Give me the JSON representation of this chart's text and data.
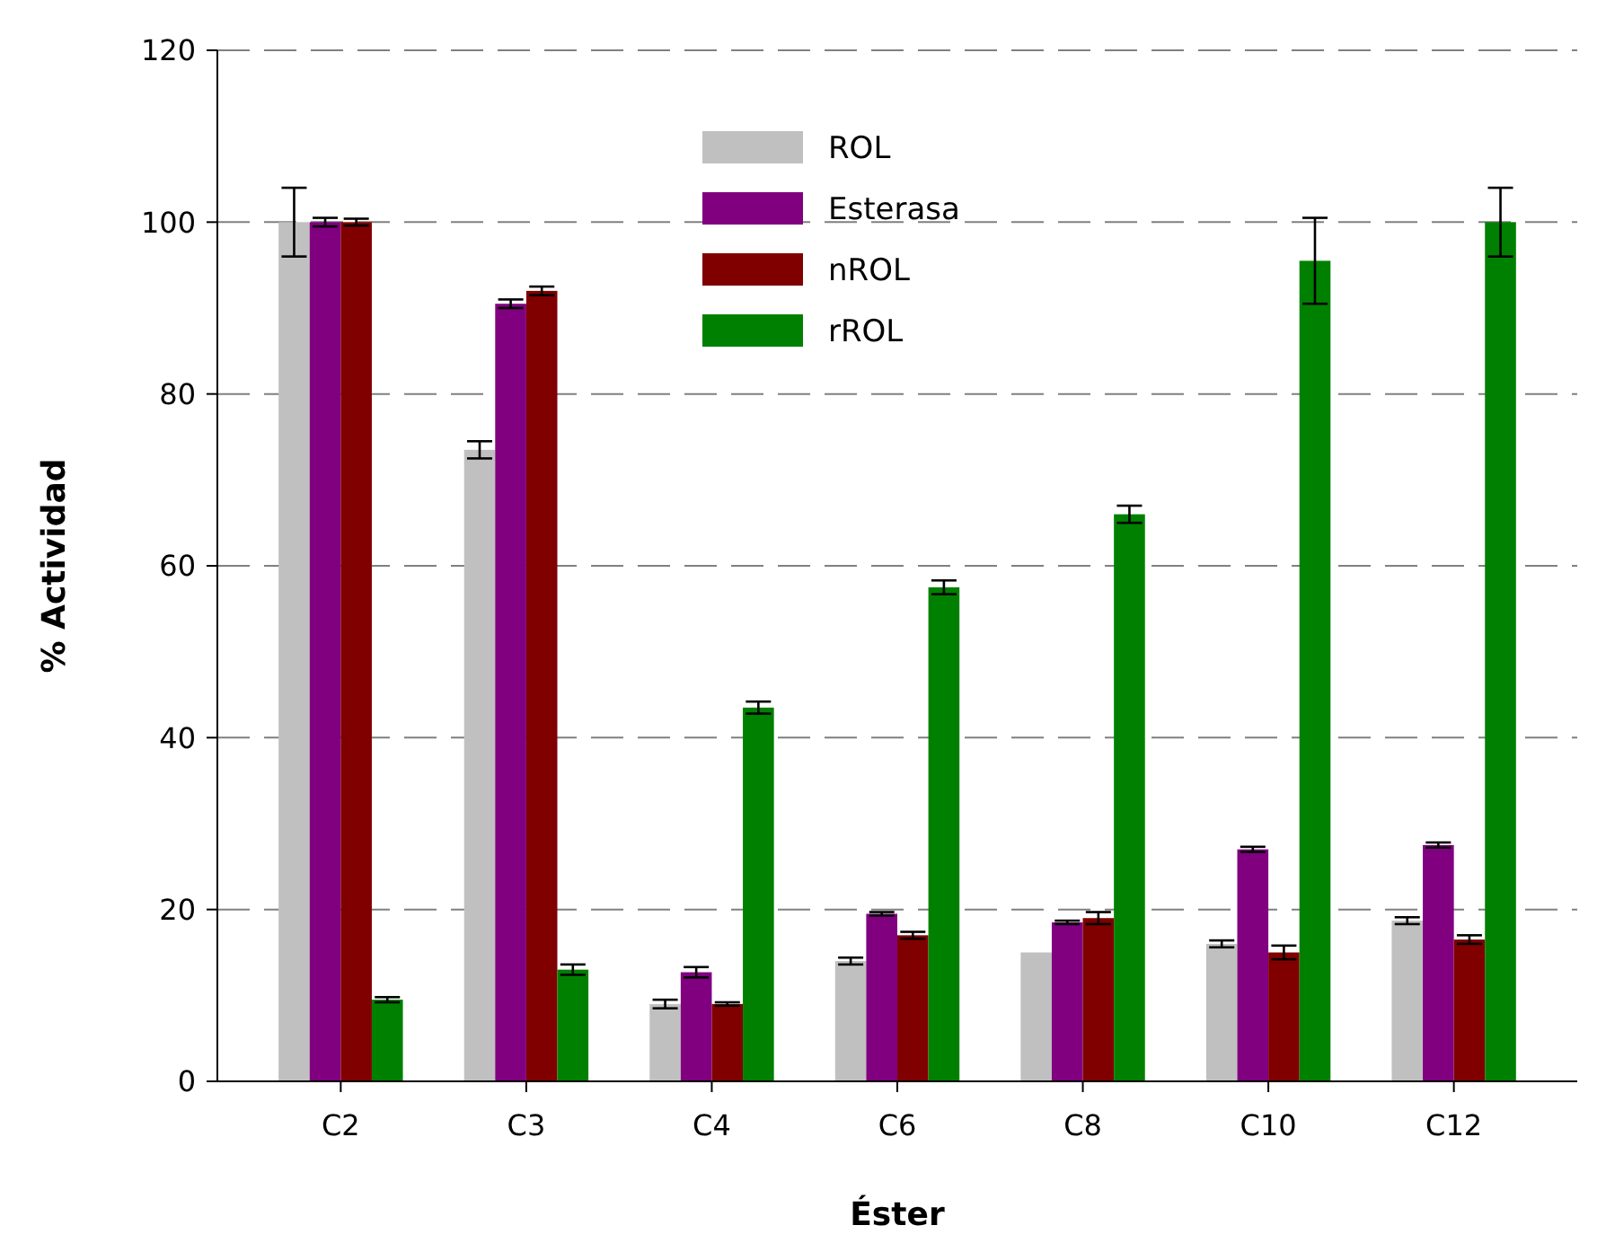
{
  "chart_data": {
    "type": "bar",
    "xlabel": "Éster",
    "ylabel": "% Actividad",
    "categories": [
      "C2",
      "C3",
      "C4",
      "C6",
      "C8",
      "C10",
      "C12"
    ],
    "series": [
      {
        "name": "ROL",
        "color": "#c0c0c0",
        "values": [
          100,
          73.5,
          9,
          14,
          15,
          16,
          18.7
        ],
        "errors": [
          4,
          1,
          0.5,
          0.4,
          null,
          0.4,
          0.4
        ]
      },
      {
        "name": "Esterasa",
        "color": "#800080",
        "values": [
          100,
          90.5,
          12.7,
          19.5,
          18.5,
          27,
          27.5
        ],
        "errors": [
          0.5,
          0.5,
          0.6,
          0.2,
          0.2,
          0.3,
          0.3
        ]
      },
      {
        "name": "nROL",
        "color": "#800000",
        "values": [
          100,
          92,
          9,
          17,
          19,
          15,
          16.5
        ],
        "errors": [
          0.4,
          0.5,
          0.2,
          0.4,
          0.7,
          0.8,
          0.5
        ]
      },
      {
        "name": "rROL",
        "color": "#008000",
        "values": [
          9.5,
          13,
          43.5,
          57.5,
          66,
          95.5,
          100
        ],
        "errors": [
          0.3,
          0.6,
          0.7,
          0.8,
          1,
          5,
          4
        ]
      }
    ],
    "ylim": [
      0,
      120
    ],
    "yticks": [
      0,
      20,
      40,
      60,
      80,
      100,
      120
    ],
    "grid": "y",
    "legend": "top"
  }
}
